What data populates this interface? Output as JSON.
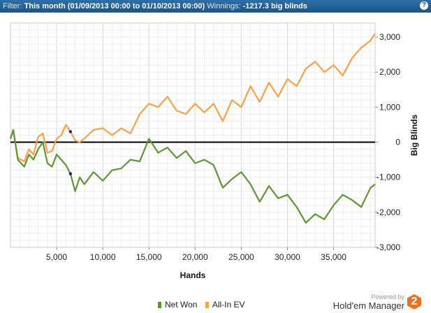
{
  "header": {
    "filter_label": "Filter:",
    "filter_value": "This month (01/09/2013 00:00 to 01/10/2013 00:00)",
    "winnings_label": "Winnings:",
    "winnings_value": "-1217.3 big blinds",
    "help_icon_glyph": "?"
  },
  "chart_data": {
    "type": "line",
    "xlabel": "Hands",
    "ylabel": "Big Blinds",
    "xlim": [
      0,
      39500
    ],
    "ylim": [
      -3000,
      3400
    ],
    "x_ticks": [
      5000,
      10000,
      15000,
      20000,
      25000,
      30000,
      35000
    ],
    "x_tick_labels": [
      "5,000",
      "10,000",
      "15,000",
      "20,000",
      "25,000",
      "30,000",
      "35,000"
    ],
    "y_ticks": [
      3000,
      2000,
      1000,
      0,
      -1000,
      -2000,
      -3000
    ],
    "y_tick_labels": [
      "3,000",
      "2,000",
      "1,000",
      "0",
      "-1,000",
      "-2,000",
      "-3,000"
    ],
    "grid": true,
    "legend_position": "bottom",
    "series": [
      {
        "name": "Net Won",
        "color": "#5f9434",
        "x": [
          0,
          300,
          800,
          1500,
          2000,
          2500,
          3000,
          3500,
          4000,
          4500,
          5000,
          5500,
          6000,
          6500,
          7000,
          7500,
          8000,
          9000,
          10000,
          11000,
          12000,
          13000,
          14000,
          15000,
          16000,
          17000,
          18000,
          19000,
          20000,
          21000,
          22000,
          23000,
          24000,
          25000,
          26000,
          27000,
          28000,
          29000,
          30000,
          31000,
          32000,
          33000,
          34000,
          35000,
          36000,
          37000,
          38000,
          39000,
          39500
        ],
        "values": [
          100,
          350,
          -500,
          -700,
          -350,
          -500,
          -200,
          0,
          -600,
          -700,
          -350,
          -500,
          -650,
          -900,
          -1400,
          -1000,
          -1200,
          -850,
          -1100,
          -800,
          -750,
          -500,
          -550,
          100,
          -300,
          -150,
          -450,
          -250,
          -600,
          -500,
          -650,
          -1300,
          -1050,
          -850,
          -1200,
          -1700,
          -1250,
          -1600,
          -1500,
          -1850,
          -2300,
          -2050,
          -2200,
          -1800,
          -1500,
          -1650,
          -1850,
          -1300,
          -1200
        ]
      },
      {
        "name": "All-In EV",
        "color": "#f5a04a",
        "x": [
          0,
          300,
          800,
          1500,
          2000,
          2500,
          3000,
          3500,
          4000,
          4500,
          5000,
          5500,
          6000,
          6500,
          7000,
          7500,
          8000,
          9000,
          10000,
          11000,
          12000,
          13000,
          14000,
          15000,
          16000,
          17000,
          18000,
          19000,
          20000,
          21000,
          22000,
          23000,
          24000,
          25000,
          26000,
          27000,
          28000,
          29000,
          30000,
          31000,
          32000,
          33000,
          34000,
          35000,
          36000,
          37000,
          38000,
          39000,
          39500
        ],
        "values": [
          100,
          350,
          -450,
          -550,
          -200,
          -350,
          150,
          250,
          -300,
          -250,
          100,
          200,
          500,
          300,
          50,
          0,
          100,
          350,
          400,
          200,
          400,
          250,
          800,
          1100,
          1000,
          1300,
          900,
          800,
          1100,
          850,
          1100,
          600,
          1200,
          1000,
          1600,
          1150,
          1700,
          1300,
          1800,
          1600,
          2100,
          2300,
          2000,
          2200,
          1900,
          2400,
          2700,
          2900,
          3100
        ]
      }
    ],
    "markers": [
      {
        "series": "All-In EV",
        "x": 6500,
        "y": 300,
        "color": "#1a237e"
      },
      {
        "series": "Net Won",
        "x": 6500,
        "y": -900,
        "color": "#1a237e"
      }
    ]
  },
  "legend": [
    {
      "label": "Net Won",
      "color": "#5f9434"
    },
    {
      "label": "All-In EV",
      "color": "#f5a04a"
    }
  ],
  "branding": {
    "powered_by": "Powered by",
    "name": "Hold'em Manager",
    "logo_text": "2"
  }
}
